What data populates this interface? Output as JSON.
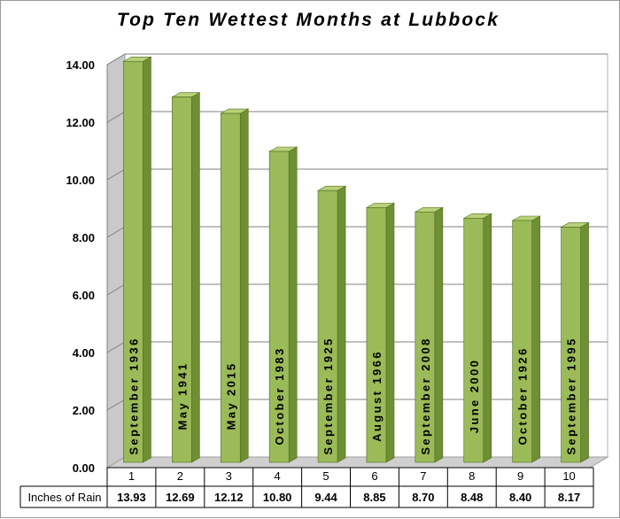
{
  "chart_data": {
    "type": "bar",
    "title": "Top Ten Wettest Months at Lubbock",
    "categories": [
      "1",
      "2",
      "3",
      "4",
      "5",
      "6",
      "7",
      "8",
      "9",
      "10"
    ],
    "bar_labels": [
      "September 1936",
      "May 1941",
      "May 2015",
      "October 1983",
      "September 1925",
      "August 1966",
      "September 2008",
      "June 2000",
      "October 1926",
      "September 1995"
    ],
    "series": [
      {
        "name": "Inches of Rain",
        "values": [
          13.93,
          12.69,
          12.12,
          10.8,
          9.44,
          8.85,
          8.7,
          8.48,
          8.4,
          8.17
        ],
        "value_labels": [
          "13.93",
          "12.69",
          "12.12",
          "10.80",
          "9.44",
          "8.85",
          "8.70",
          "8.48",
          "8.40",
          "8.17"
        ]
      }
    ],
    "y_ticks": [
      "0.00",
      "2.00",
      "4.00",
      "6.00",
      "8.00",
      "10.00",
      "12.00",
      "14.00"
    ],
    "ylim": [
      0,
      14
    ],
    "grid": true,
    "style": "3d-columns",
    "data_table": true,
    "colors": {
      "bar_front": "#9bbb59",
      "bar_side": "#6f8f34",
      "bar_top": "#b9d27a",
      "bar_edge": "#4e6b1d",
      "back_wall": "#ffffff",
      "side_wall": "#c9c9c9",
      "floor": "#cfcfcf",
      "gridline": "#808080"
    }
  }
}
